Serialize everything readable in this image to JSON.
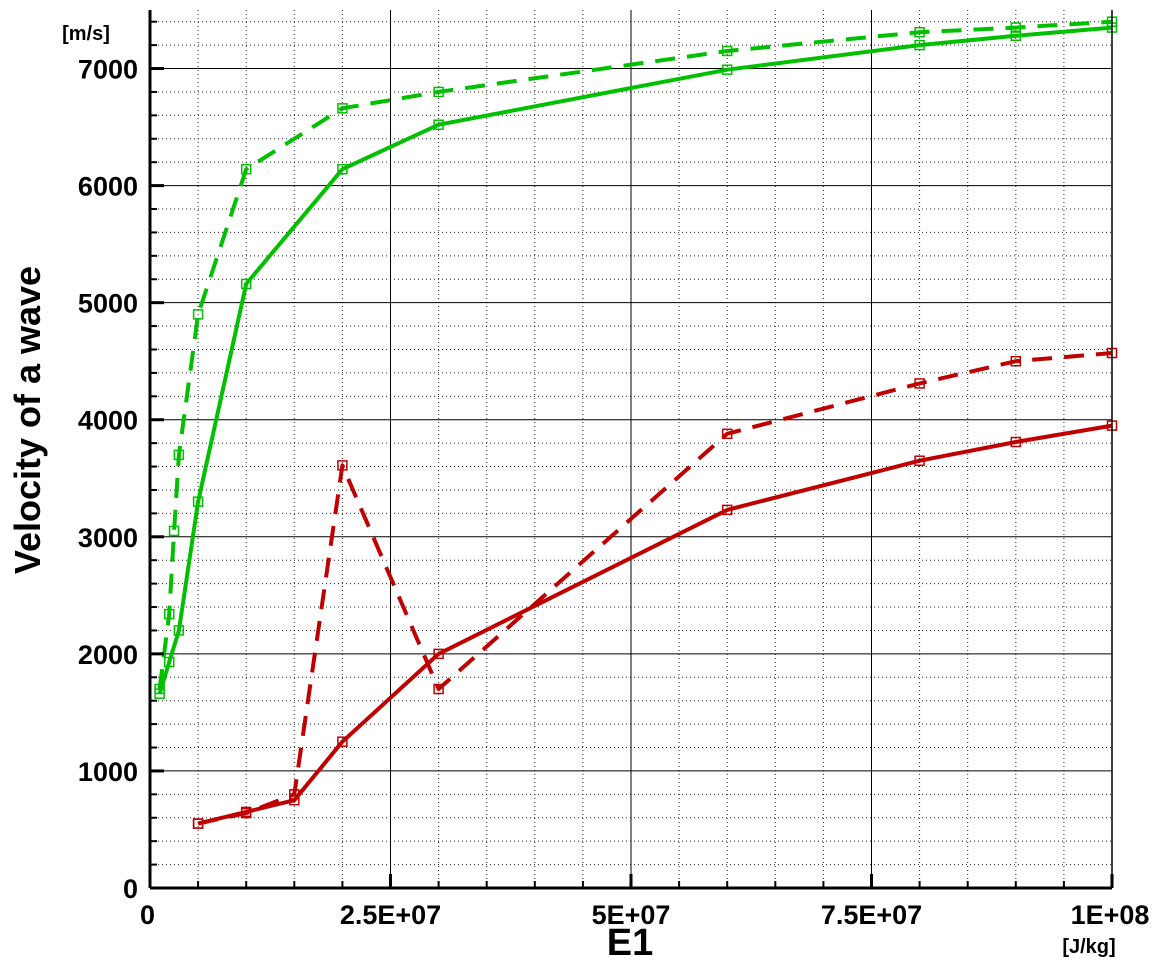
{
  "chart_data": {
    "type": "line",
    "title": "",
    "xlabel": "E1",
    "xunit": "[J/kg]",
    "ylabel": "Velocity of a wave",
    "yunit": "[m/s]",
    "xlim": [
      0,
      100000000
    ],
    "ylim": [
      0,
      7500
    ],
    "x_ticks": [
      0,
      25000000,
      50000000,
      75000000,
      100000000
    ],
    "x_tick_labels": [
      "0",
      "2.5E+07",
      "5E+07",
      "7.5E+07",
      "1E+08"
    ],
    "y_ticks": [
      0,
      1000,
      2000,
      3000,
      4000,
      5000,
      6000,
      7000
    ],
    "y_tick_labels": [
      "0",
      "1000",
      "2000",
      "3000",
      "4000",
      "5000",
      "6000",
      "7000"
    ],
    "grid": "major solid, minor dotted",
    "legend": "none",
    "series": [
      {
        "color": "#00c000",
        "line_style": "solid",
        "marker": "open-square",
        "points": [
          [
            1000000,
            1660
          ],
          [
            2000000,
            1930
          ],
          [
            3000000,
            2200
          ],
          [
            5000000,
            3300
          ],
          [
            10000000,
            5160
          ],
          [
            20000000,
            6140
          ],
          [
            30000000,
            6520
          ],
          [
            60000000,
            6990
          ],
          [
            80000000,
            7200
          ],
          [
            90000000,
            7280
          ],
          [
            100000000,
            7350
          ]
        ]
      },
      {
        "color": "#00c000",
        "line_style": "dashed",
        "marker": "open-square",
        "points": [
          [
            1000000,
            1700
          ],
          [
            2000000,
            2340
          ],
          [
            2500000,
            3050
          ],
          [
            3000000,
            3700
          ],
          [
            5000000,
            4900
          ],
          [
            10000000,
            6140
          ],
          [
            20000000,
            6660
          ],
          [
            30000000,
            6800
          ],
          [
            60000000,
            7150
          ],
          [
            80000000,
            7310
          ],
          [
            90000000,
            7350
          ],
          [
            100000000,
            7400
          ]
        ]
      },
      {
        "color": "#c00000",
        "line_style": "solid",
        "marker": "open-square",
        "points": [
          [
            5000000,
            550
          ],
          [
            10000000,
            650
          ],
          [
            15000000,
            750
          ],
          [
            20000000,
            1250
          ],
          [
            30000000,
            2000
          ],
          [
            60000000,
            3230
          ],
          [
            80000000,
            3650
          ],
          [
            90000000,
            3810
          ],
          [
            100000000,
            3950
          ]
        ]
      },
      {
        "color": "#c00000",
        "line_style": "dashed",
        "marker": "open-square",
        "points": [
          [
            5000000,
            550
          ],
          [
            10000000,
            640
          ],
          [
            15000000,
            800
          ],
          [
            20000000,
            3610
          ],
          [
            30000000,
            1700
          ],
          [
            60000000,
            3880
          ],
          [
            80000000,
            4310
          ],
          [
            90000000,
            4500
          ],
          [
            100000000,
            4570
          ]
        ]
      }
    ]
  }
}
